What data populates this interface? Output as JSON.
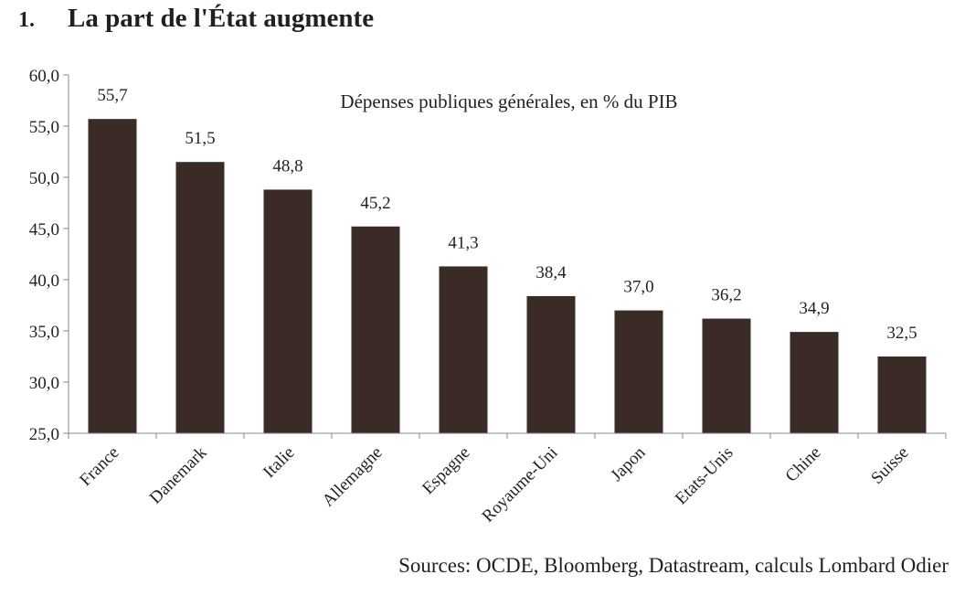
{
  "heading": {
    "number": "1.",
    "title": "La part de l'État augmente"
  },
  "source": "Sources: OCDE, Bloomberg, Datastream, calculs Lombard Odier",
  "colors": {
    "bar": "#3b2b27",
    "axis": "#888888"
  },
  "chart_data": {
    "type": "bar",
    "title": "Dépenses publiques générales, en % du PIB",
    "categories": [
      "France",
      "Danemark",
      "Italie",
      "Allemagne",
      "Espagne",
      "Royaume-Uni",
      "Japon",
      "Etats-Unis",
      "Chine",
      "Suisse"
    ],
    "values": [
      55.7,
      51.5,
      48.8,
      45.2,
      41.3,
      38.4,
      37.0,
      36.2,
      34.9,
      32.5
    ],
    "value_labels": [
      "55,7",
      "51,5",
      "48,8",
      "45,2",
      "41,3",
      "38,4",
      "37,0",
      "36,2",
      "34,9",
      "32,5"
    ],
    "ylim": [
      25,
      60
    ],
    "yticks": [
      25,
      30,
      35,
      40,
      45,
      50,
      55,
      60
    ],
    "ytick_labels": [
      "25,0",
      "30,0",
      "35,0",
      "40,0",
      "45,0",
      "50,0",
      "55,0",
      "60,0"
    ],
    "grid": false,
    "legend": "none"
  }
}
